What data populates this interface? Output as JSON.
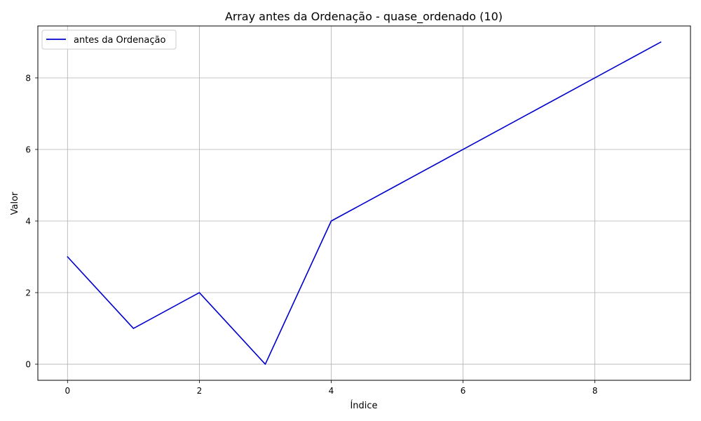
{
  "chart_data": {
    "type": "line",
    "title": "Array antes da Ordenação - quase_ordenado (10)",
    "xlabel": "Índice",
    "ylabel": "Valor",
    "x": [
      0,
      1,
      2,
      3,
      4,
      5,
      6,
      7,
      8,
      9
    ],
    "series": [
      {
        "name": "antes da Ordenação",
        "values": [
          3,
          1,
          2,
          0,
          4,
          5,
          6,
          7,
          8,
          9
        ],
        "color": "#0000cd"
      }
    ],
    "xlim": [
      -0.45,
      9.45
    ],
    "ylim": [
      -0.45,
      9.45
    ],
    "xticks": [
      0,
      2,
      4,
      6,
      8
    ],
    "yticks": [
      0,
      2,
      4,
      6,
      8
    ],
    "grid": true,
    "legend": "top-left"
  }
}
